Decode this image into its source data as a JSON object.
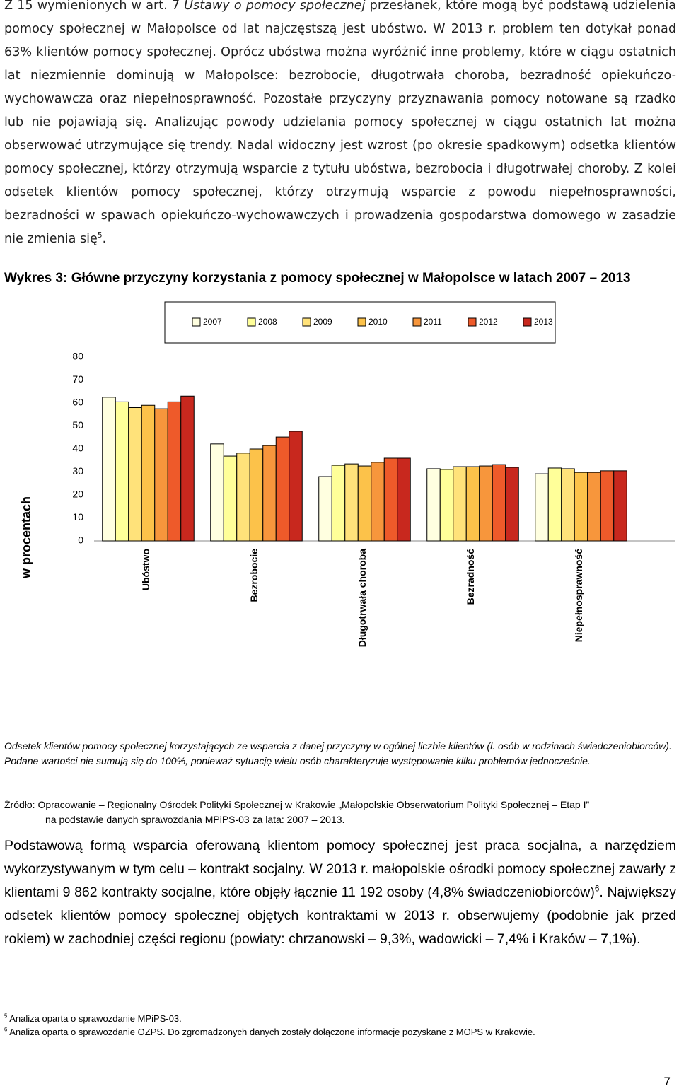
{
  "paragraph_1": {
    "text_1": "Z 15 wymienionych w art. 7",
    "italic": "Ustawy o pomocy społecznej",
    "text_2": "przesłanek, które mogą być podstawą udzielenia pomocy społecznej w Małopolsce od lat najczęstszą jest ubóstwo. W 2013 r. problem ten dotykał ponad 63% klientów pomocy społecznej. Oprócz ubóstwa można wyróżnić inne problemy, które w ciągu ostatnich lat niezmiennie dominują w Małopolsce: bezrobocie, długotrwała choroba, bezradność opiekuńczo-wychowawcza oraz niepełnosprawność. Pozostałe przyczyny przyznawania pomocy notowane są rzadko lub nie pojawiają się. Analizując powody udzielania pomocy społecznej w ciągu ostatnich lat można obserwować utrzymujące się trendy. Nadal widoczny jest wzrost (po okresie spadkowym) odsetka klientów pomocy społecznej, którzy otrzymują wsparcie z tytułu ubóstwa, bezrobocia i długotrwałej choroby. Z kolei odsetek klientów pomocy społecznej, którzy otrzymują wsparcie z powodu niepełnosprawności, bezradności w spawach opiekuńczo-wychowawczych i prowadzenia gospodarstwa domowego w zasadzie nie zmienia się",
    "footnote_ref": "5",
    "text_3": "."
  },
  "chart_data": {
    "type": "bar",
    "title": "Wykres 3: Główne przyczyny korzystania z pomocy społecznej w Małopolsce w latach 2007 – 2013",
    "y_label": "w procentach",
    "categories": [
      "Ubóstwo",
      "Bezrobocie",
      "Długotrwała choroba",
      "Bezradność",
      "Niepełnosprawność"
    ],
    "series": [
      {
        "name": "2007",
        "color": "#ffffe0",
        "values": [
          62.5,
          42.2,
          28,
          31.4,
          29.2
        ]
      },
      {
        "name": "2008",
        "color": "#ffff99",
        "values": [
          60.5,
          36.9,
          32.9,
          31.1,
          31.7
        ]
      },
      {
        "name": "2009",
        "color": "#ffe27a",
        "values": [
          58,
          38.2,
          33.5,
          32.3,
          31.4
        ]
      },
      {
        "name": "2010",
        "color": "#fcc24a",
        "values": [
          59,
          40,
          32.6,
          32.3,
          29.8
        ]
      },
      {
        "name": "2011",
        "color": "#f7963c",
        "values": [
          57.5,
          41.5,
          34.2,
          32.6,
          29.8
        ]
      },
      {
        "name": "2012",
        "color": "#ee5a2a",
        "values": [
          60.5,
          45.2,
          36,
          33.2,
          30.5
        ]
      },
      {
        "name": "2013",
        "color": "#c8281e",
        "values": [
          63,
          47.7,
          36,
          32,
          30.5
        ]
      }
    ],
    "ylim": [
      0,
      80
    ],
    "yticks": [
      0,
      10,
      20,
      30,
      40,
      50,
      60,
      70,
      80
    ],
    "grid": false,
    "legend": "top"
  },
  "note": "Odsetek klientów pomocy społecznej korzystających ze wsparcia z danej przyczyny w ogólnej liczbie klientów (l. osób w rodzinach świadczeniobiorców). Podane wartości nie sumują się do 100%, ponieważ sytuację wielu osób charakteryzuje występowanie kilku problemów jednocześnie.",
  "source": {
    "line_1": "Źródło: Opracowanie – Regionalny Ośrodek Polityki Społecznej w Krakowie „Małopolskie Obserwatorium Polityki Społecznej – Etap I”",
    "line_2": "na podstawie danych sprawozdania MPiPS-03 za lata: 2007 – 2013."
  },
  "paragraph_2": {
    "text_1": "Podstawową formą wsparcia oferowaną klientom pomocy społecznej jest praca socjalna, a narzędziem wykorzystywanym w tym celu – kontrakt socjalny. W 2013 r. małopolskie ośrodki pomocy społecznej zawarły z klientami 9 862 kontrakty socjalne, które objęły łącznie 11 192 osoby (4,8% świadczeniobiorców)",
    "footnote_ref": "6",
    "text_2": ". Największy odsetek klientów pomocy społecznej objętych kontraktami w 2013 r. obserwujemy (podobnie jak przed rokiem) w zachodniej części regionu (powiaty: chrzanowski – 9,3%, wadowicki – 7,4% i Kraków – 7,1%)."
  },
  "footnotes": [
    {
      "number": "5",
      "text": "Analiza oparta o sprawozdanie MPiPS-03."
    },
    {
      "number": "6",
      "text": "Analiza oparta o sprawozdanie OZPS. Do zgromadzonych danych zostały dołączone informacje pozyskane z MOPS w Krakowie."
    }
  ],
  "page_number": "7"
}
